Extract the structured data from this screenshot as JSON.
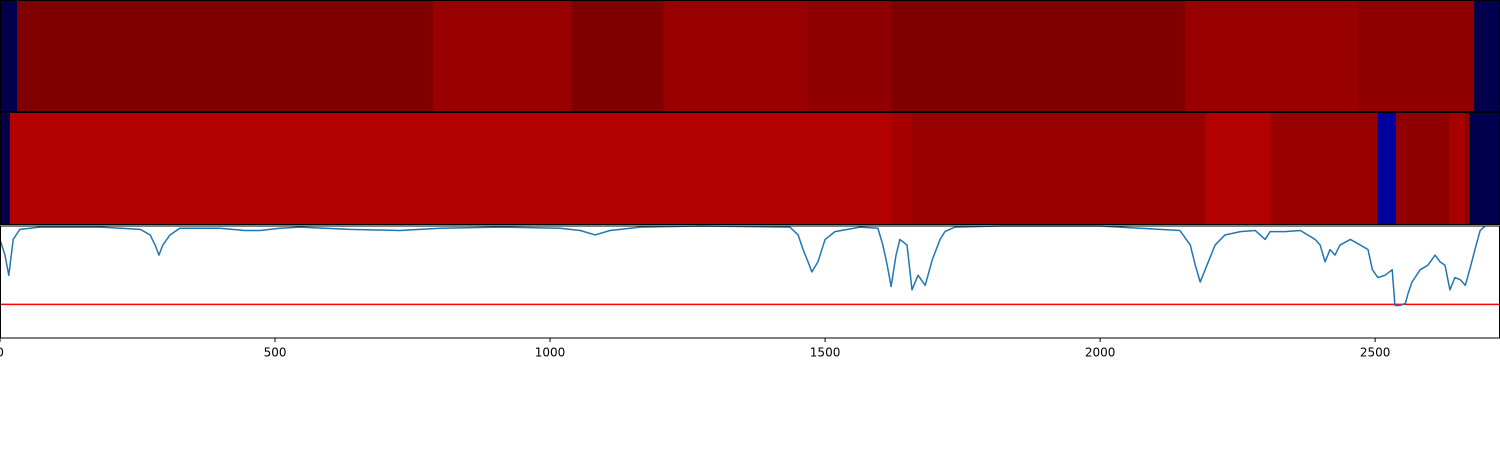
{
  "chart_data": [
    {
      "type": "strip",
      "colormap": "seismic",
      "vlim": [
        -1,
        1
      ],
      "xlim": [
        0,
        2727
      ],
      "bins": [
        0,
        31,
        787,
        1038,
        1207,
        1469,
        1620,
        2155,
        2469,
        2680,
        2727
      ],
      "values": [
        -1,
        1,
        0.9,
        1,
        0.9,
        0.93,
        1,
        0.9,
        0.93,
        -1
      ]
    },
    {
      "type": "strip",
      "colormap": "seismic",
      "vlim": [
        -1,
        1
      ],
      "xlim": [
        0,
        2727
      ],
      "bins": [
        0,
        18,
        1620,
        1658,
        1687,
        2191,
        2311,
        2504,
        2538,
        2635,
        2664,
        2671,
        2727
      ],
      "values": [
        -1,
        0.8,
        0.85,
        0.9,
        0.9,
        0.8,
        0.9,
        -0.77,
        0.93,
        0.85,
        0.95,
        -1
      ]
    },
    {
      "type": "line",
      "color": "#1f77b4",
      "xlim": [
        0,
        2727
      ],
      "ylim": [
        0,
        1
      ],
      "xticks": [
        0,
        500,
        1000,
        1500,
        2000,
        2500
      ],
      "hline": {
        "value": 0.3,
        "color": "#ff0000"
      },
      "x": [
        0,
        9,
        16,
        24,
        36,
        73,
        182,
        255,
        273,
        282,
        289,
        296,
        309,
        327,
        400,
        445,
        473,
        509,
        545,
        636,
        727,
        800,
        909,
        1018,
        1055,
        1082,
        1109,
        1164,
        1273,
        1436,
        1451,
        1460,
        1469,
        1476,
        1487,
        1500,
        1518,
        1564,
        1596,
        1605,
        1613,
        1620,
        1629,
        1636,
        1649,
        1658,
        1669,
        1682,
        1695,
        1709,
        1718,
        1736,
        1818,
        2000,
        2145,
        2164,
        2173,
        2182,
        2191,
        2209,
        2227,
        2255,
        2282,
        2300,
        2309,
        2336,
        2364,
        2391,
        2400,
        2409,
        2418,
        2427,
        2436,
        2455,
        2473,
        2487,
        2495,
        2505,
        2518,
        2531,
        2536,
        2545,
        2555,
        2560,
        2567,
        2582,
        2596,
        2609,
        2618,
        2627,
        2636,
        2645,
        2655,
        2664,
        2673,
        2682,
        2691,
        2700
      ],
      "values": [
        0.88,
        0.74,
        0.56,
        0.88,
        0.97,
        0.99,
        0.99,
        0.97,
        0.92,
        0.83,
        0.74,
        0.83,
        0.92,
        0.98,
        0.98,
        0.96,
        0.96,
        0.98,
        0.99,
        0.97,
        0.96,
        0.98,
        0.99,
        0.98,
        0.96,
        0.92,
        0.96,
        0.99,
        1.0,
        0.99,
        0.92,
        0.79,
        0.68,
        0.59,
        0.68,
        0.88,
        0.95,
        0.99,
        0.98,
        0.83,
        0.65,
        0.46,
        0.74,
        0.88,
        0.83,
        0.43,
        0.56,
        0.47,
        0.7,
        0.88,
        0.95,
        0.99,
        1.0,
        1.0,
        0.96,
        0.83,
        0.65,
        0.5,
        0.61,
        0.83,
        0.92,
        0.95,
        0.96,
        0.88,
        0.95,
        0.95,
        0.96,
        0.88,
        0.83,
        0.68,
        0.79,
        0.74,
        0.83,
        0.88,
        0.83,
        0.79,
        0.61,
        0.54,
        0.56,
        0.61,
        0.29,
        0.29,
        0.31,
        0.4,
        0.5,
        0.61,
        0.65,
        0.74,
        0.68,
        0.65,
        0.43,
        0.54,
        0.52,
        0.47,
        0.63,
        0.8,
        0.96,
        1.0
      ]
    }
  ]
}
